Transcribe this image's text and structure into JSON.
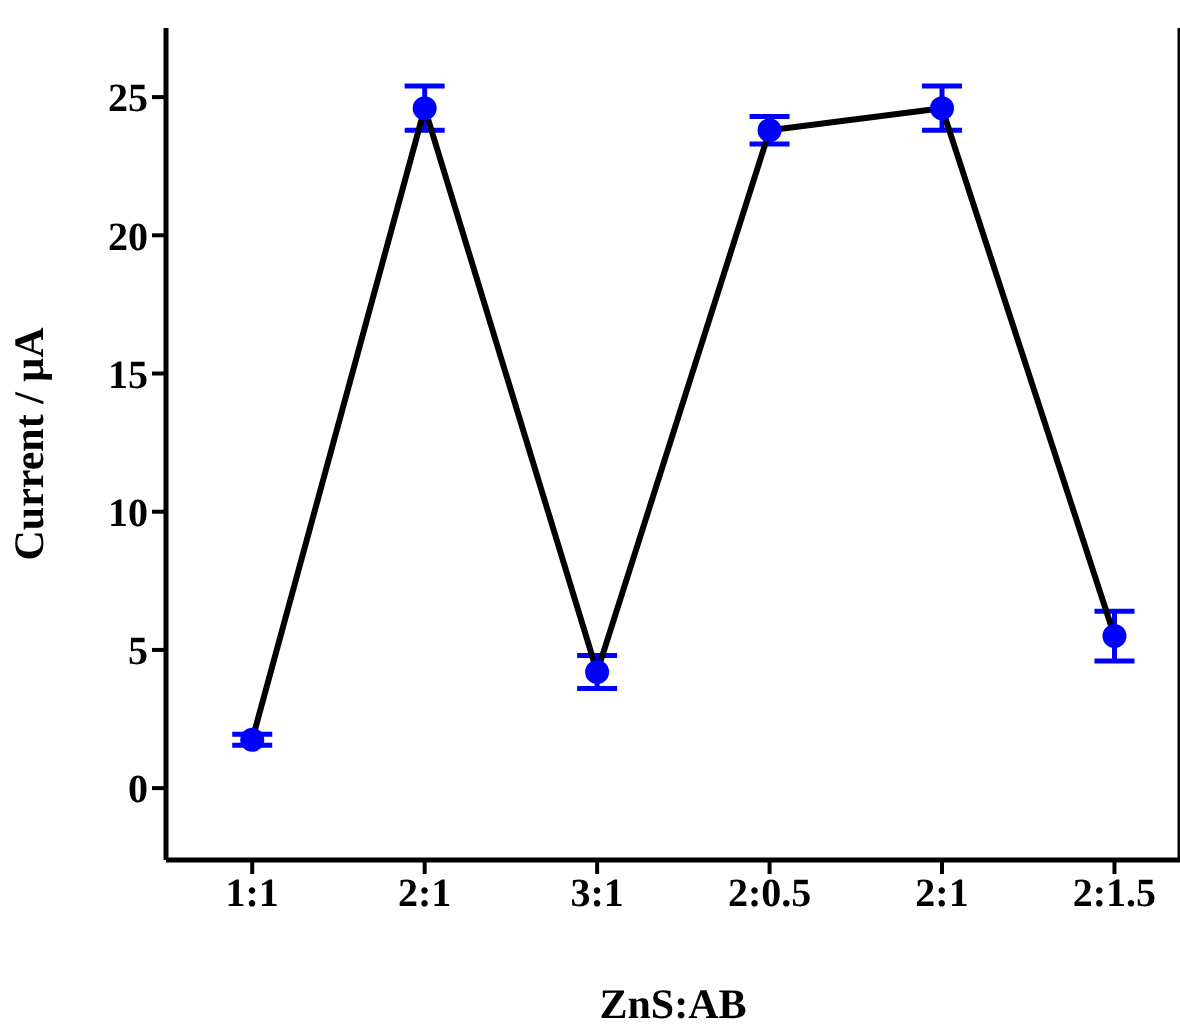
{
  "chart_data": {
    "type": "line",
    "xlabel": "ZnS:AB",
    "ylabel": "Current / μA",
    "categories": [
      "1:1",
      "2:1",
      "3:1",
      "2:0.5",
      "2:1",
      "2:1.5"
    ],
    "series": [
      {
        "color": "#000000",
        "colors": [
          "#0000ff",
          "#0000ff",
          "#0000ff",
          "#0000ff",
          "#0000ff",
          "#0000ff"
        ],
        "values": [
          1.75,
          24.6,
          4.2,
          23.8,
          24.6,
          5.5
        ],
        "errors": [
          0.2,
          0.8,
          0.6,
          0.5,
          0.8,
          0.9
        ]
      }
    ],
    "ylim": [
      -2.6,
      27.5
    ],
    "yticks": [
      0,
      5,
      10,
      15,
      20,
      25
    ],
    "grid": false,
    "legend": false,
    "marker": "circle",
    "line_style": "solid"
  }
}
